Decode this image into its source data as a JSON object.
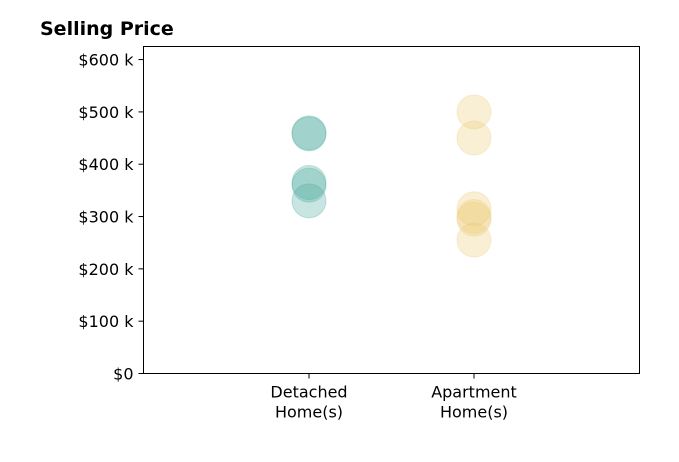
{
  "chart_data": {
    "type": "scatter",
    "title": "Selling Price",
    "xlabel": "",
    "ylabel": "",
    "categories": [
      "Detached Home(s)",
      "Apartment Home(s)"
    ],
    "category_lines": [
      [
        "Detached",
        "Home(s)"
      ],
      [
        "Apartment",
        "Home(s)"
      ]
    ],
    "ylim": [
      0,
      625
    ],
    "y_ticks": [
      0,
      100,
      200,
      300,
      400,
      500,
      600
    ],
    "y_tick_labels": [
      "$0",
      "$100 k",
      "$200 k",
      "$300 k",
      "$400 k",
      "$500 k",
      "$600 k"
    ],
    "grid": false,
    "legend": "none",
    "series": [
      {
        "category": "Detached Home(s)",
        "color": "#4aaa9a",
        "values": [
          458,
          460,
          365,
          360,
          330
        ]
      },
      {
        "category": "Apartment Home(s)",
        "color": "#ecca73",
        "values": [
          500,
          450,
          315,
          300,
          295,
          255
        ]
      }
    ]
  }
}
